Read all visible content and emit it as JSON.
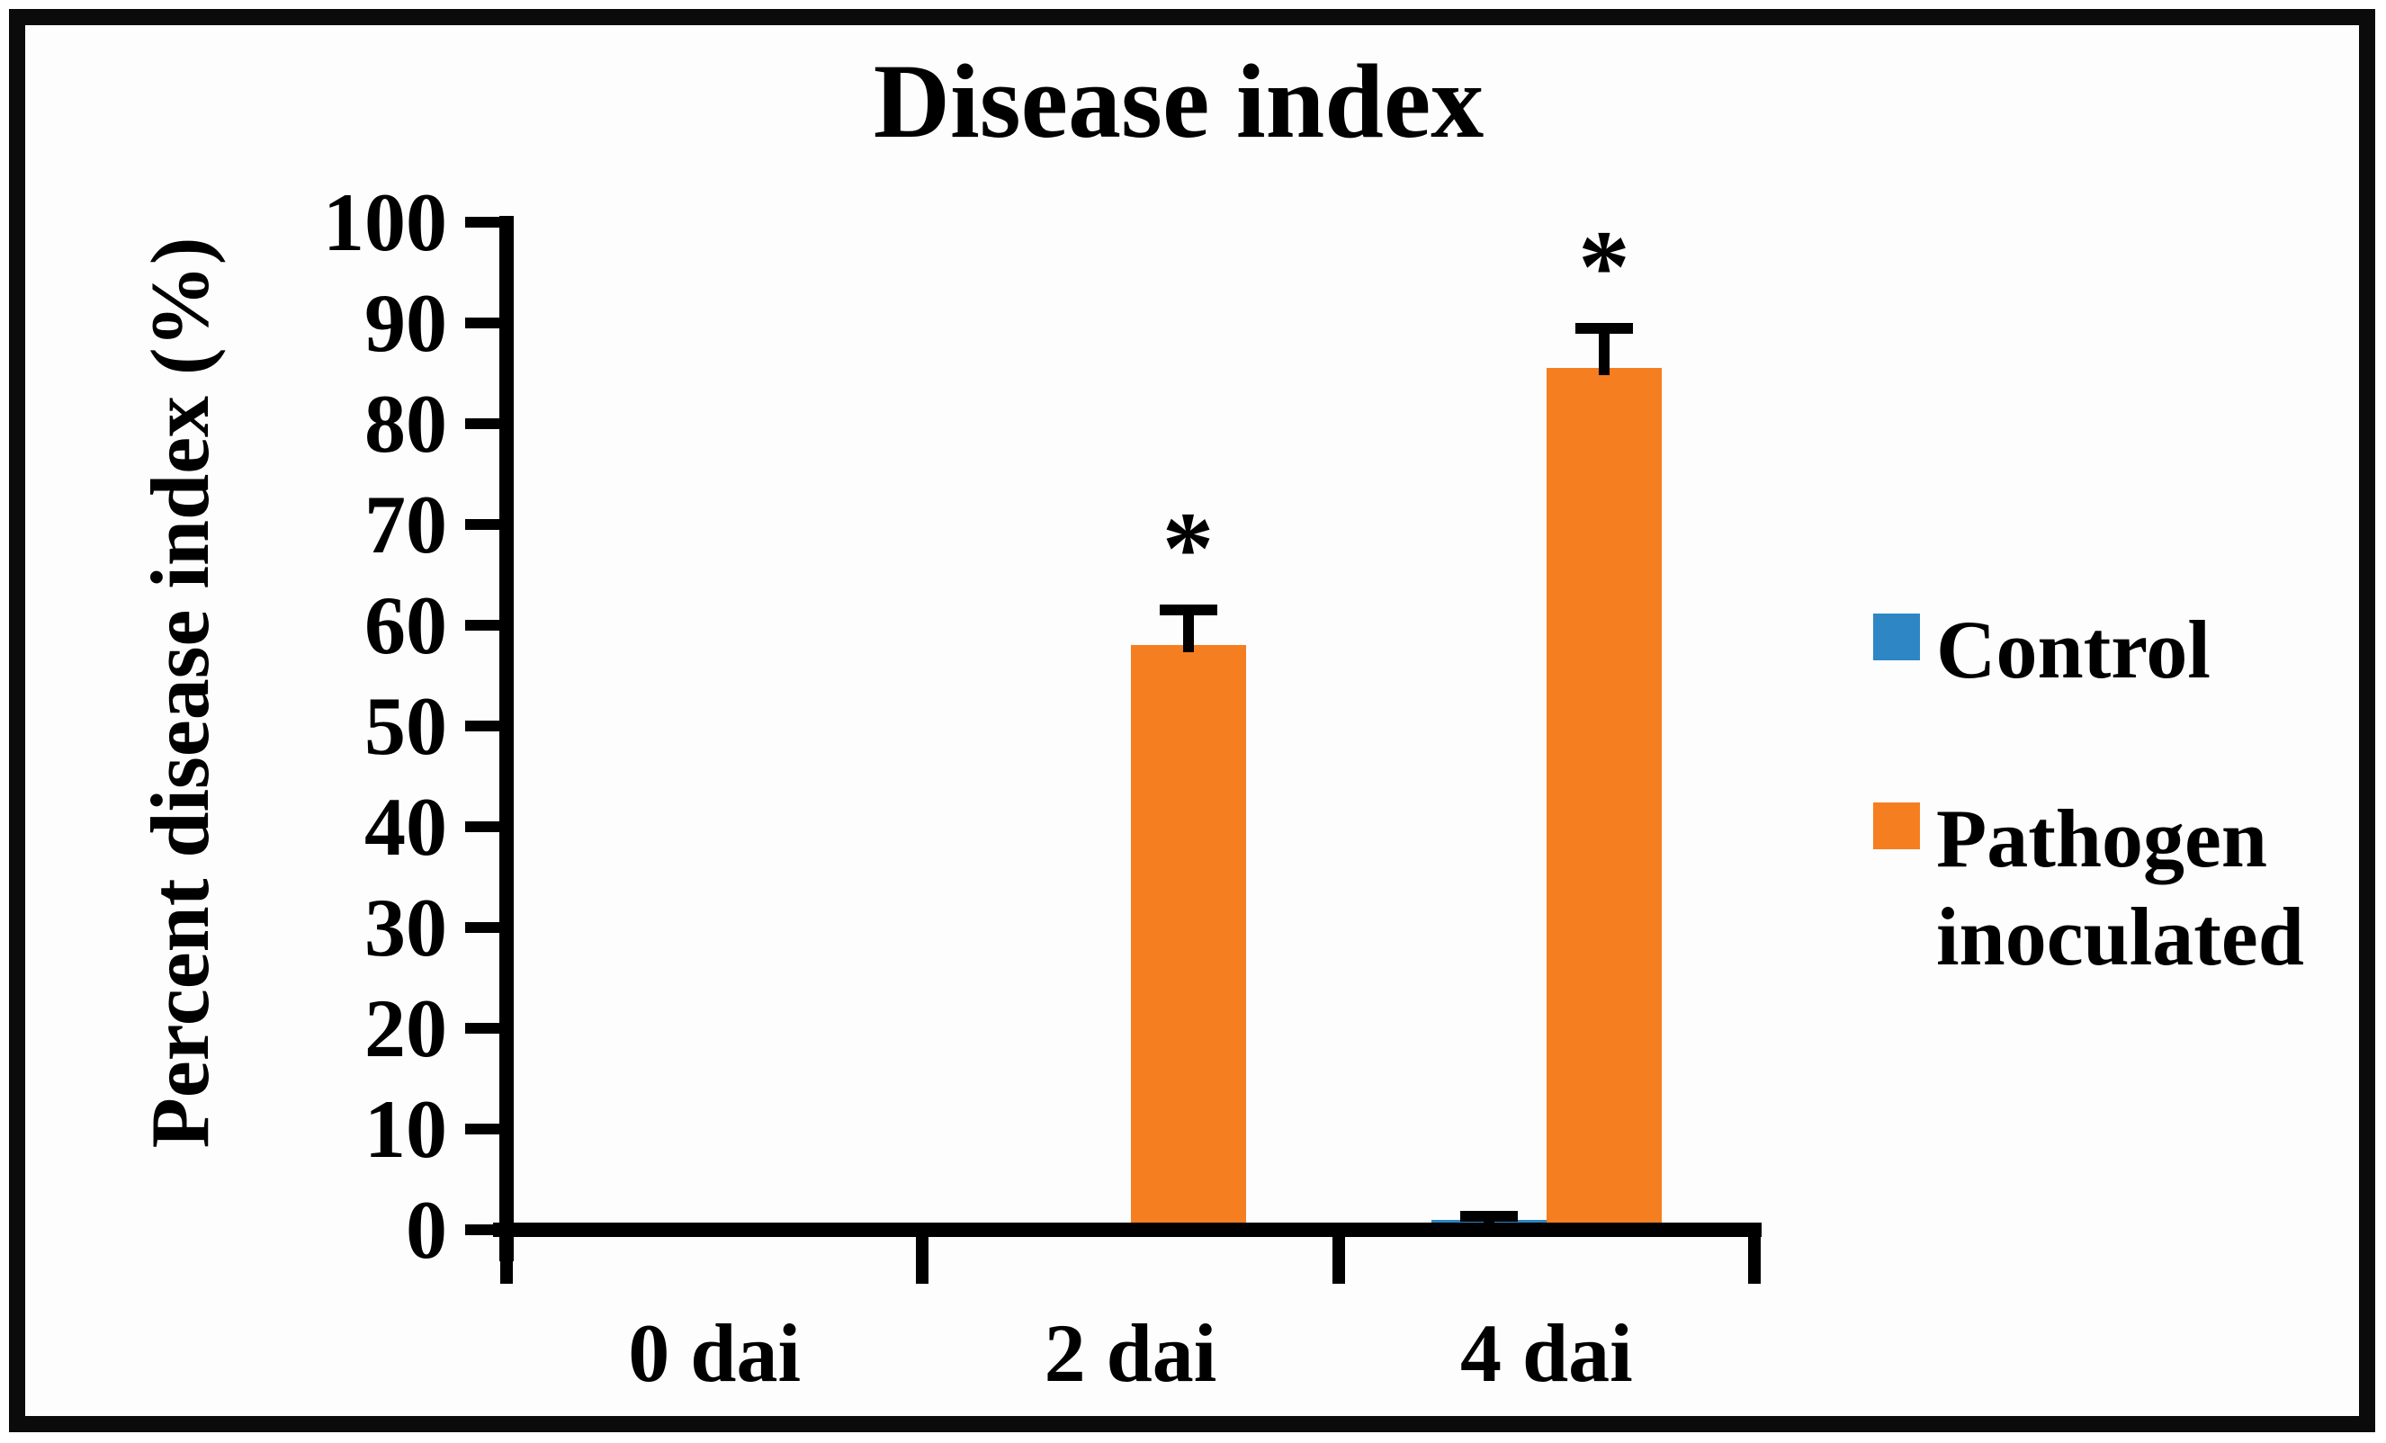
{
  "figure": {
    "background": "#fdfdfd",
    "border_color": "#0b0b0b"
  },
  "chart_data": {
    "type": "bar",
    "title": "Disease index",
    "xlabel": "",
    "ylabel": "Percent disease index (%)",
    "categories": [
      "0 dai",
      "2 dai",
      "4 dai"
    ],
    "series": [
      {
        "name": "Control",
        "color": "#2E86C4",
        "values": [
          0.5,
          0.5,
          1
        ],
        "errors": [
          0,
          0,
          0.9
        ],
        "significant": [
          false,
          false,
          false
        ]
      },
      {
        "name": "Pathogen inoculated",
        "color": "#F57E20",
        "values": [
          0.5,
          58,
          85.5
        ],
        "errors": [
          0,
          4,
          4.5
        ],
        "significant": [
          false,
          true,
          true
        ]
      }
    ],
    "ylim": [
      0,
      100
    ],
    "ytick_step": 10,
    "ytick_labels": [
      "0",
      "10",
      "20",
      "30",
      "40",
      "50",
      "60",
      "70",
      "80",
      "90",
      "100"
    ],
    "grid": false,
    "legend_position": "right",
    "significance_marker": "*",
    "error_bar_color": "#000000",
    "axis_color": "#000000"
  }
}
